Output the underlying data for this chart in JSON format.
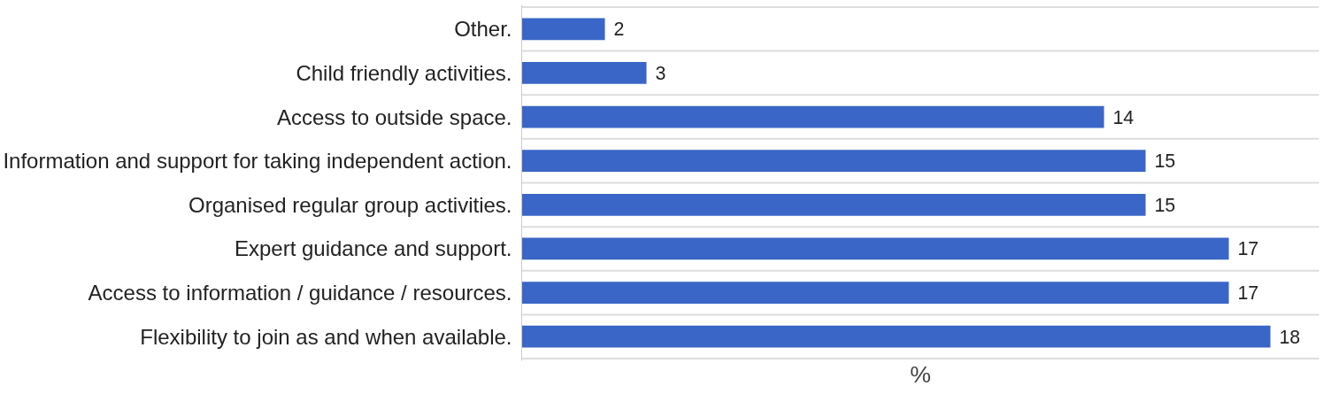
{
  "chart_data": {
    "type": "bar",
    "orientation": "horizontal",
    "xlabel": "%",
    "categories": [
      "Other.",
      "Child friendly activities.",
      "Access to outside space.",
      "Information and support for taking independent action.",
      "Organised regular group activities.",
      "Expert guidance and support.",
      "Access to information / guidance / resources.",
      "Flexibility to join as and when available."
    ],
    "values": [
      2,
      3,
      14,
      15,
      15,
      17,
      17,
      18
    ],
    "color": "#3a66c8",
    "data_labels": true,
    "grid": "y"
  }
}
